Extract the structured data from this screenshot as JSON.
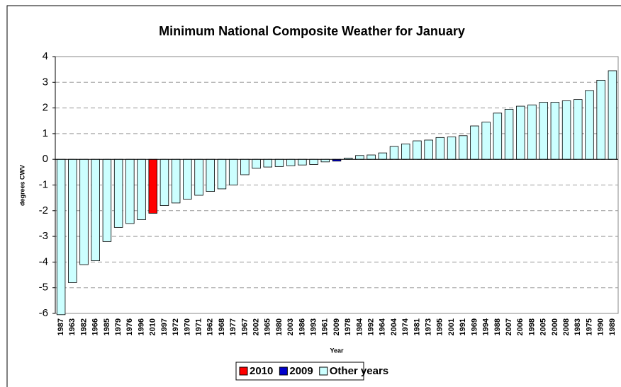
{
  "chart_data": {
    "type": "bar",
    "title": "Minimum National Composite Weather for January",
    "x_label": "Year",
    "y_label": "degrees CWV",
    "categories": [
      "1987",
      "1963",
      "1982",
      "1966",
      "1985",
      "1979",
      "1976",
      "1996",
      "2010",
      "1997",
      "1972",
      "1970",
      "1971",
      "1962",
      "1968",
      "1977",
      "1967",
      "2002",
      "1965",
      "1980",
      "2003",
      "1986",
      "1993",
      "1961",
      "2009",
      "1978",
      "1984",
      "1992",
      "1964",
      "2004",
      "1974",
      "1981",
      "1973",
      "1995",
      "2001",
      "1991",
      "1969",
      "1994",
      "1988",
      "2007",
      "2006",
      "1998",
      "2005",
      "2000",
      "2008",
      "1983",
      "1975",
      "1990",
      "1989"
    ],
    "series": [
      {
        "name": "2010",
        "color": "#ff0000",
        "values": [
          null,
          null,
          null,
          null,
          null,
          null,
          null,
          null,
          -2.1,
          null,
          null,
          null,
          null,
          null,
          null,
          null,
          null,
          null,
          null,
          null,
          null,
          null,
          null,
          null,
          null,
          null,
          null,
          null,
          null,
          null,
          null,
          null,
          null,
          null,
          null,
          null,
          null,
          null,
          null,
          null,
          null,
          null,
          null,
          null,
          null,
          null,
          null,
          null,
          null
        ]
      },
      {
        "name": "2009",
        "color": "#0000cc",
        "values": [
          null,
          null,
          null,
          null,
          null,
          null,
          null,
          null,
          null,
          null,
          null,
          null,
          null,
          null,
          null,
          null,
          null,
          null,
          null,
          null,
          null,
          null,
          null,
          null,
          -0.07,
          null,
          null,
          null,
          null,
          null,
          null,
          null,
          null,
          null,
          null,
          null,
          null,
          null,
          null,
          null,
          null,
          null,
          null,
          null,
          null,
          null,
          null,
          null,
          null
        ]
      },
      {
        "name": "Other years",
        "color": "#ccffff",
        "values": [
          -6.05,
          -4.8,
          -4.1,
          -3.95,
          -3.2,
          -2.65,
          -2.5,
          -2.35,
          null,
          -1.8,
          -1.7,
          -1.55,
          -1.4,
          -1.25,
          -1.15,
          -1.0,
          -0.6,
          -0.35,
          -0.3,
          -0.28,
          -0.25,
          -0.22,
          -0.2,
          -0.1,
          null,
          0.05,
          0.15,
          0.17,
          0.25,
          0.5,
          0.6,
          0.72,
          0.75,
          0.85,
          0.87,
          0.92,
          1.3,
          1.45,
          1.8,
          1.95,
          2.07,
          2.12,
          2.22,
          2.22,
          2.28,
          2.33,
          2.68,
          3.08,
          3.45
        ]
      }
    ],
    "ylim": [
      -6,
      4
    ],
    "yticks": [
      -6,
      -5,
      -4,
      -3,
      -2,
      -1,
      0,
      1,
      2,
      3,
      4
    ],
    "grid": true,
    "legend": "bottom"
  }
}
